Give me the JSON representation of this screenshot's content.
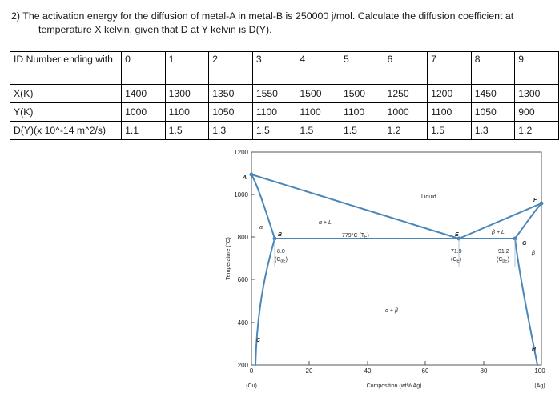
{
  "question": {
    "number": "2)",
    "line1": "The activation energy for the diffusion of metal-A in metal-B is 250000 j/mol. Calculate the diffusion coefficient at",
    "line2": "temperature X kelvin, given that D at Y kelvin is D(Y)."
  },
  "table": {
    "header_label": "ID Number ending with",
    "ids": [
      "0",
      "1",
      "2",
      "3",
      "4",
      "5",
      "6",
      "7",
      "8",
      "9"
    ],
    "rows": [
      {
        "label": "X(K)",
        "values": [
          "1400",
          "1300",
          "1350",
          "1550",
          "1500",
          "1500",
          "1250",
          "1200",
          "1450",
          "1300"
        ]
      },
      {
        "label": "Y(K)",
        "values": [
          "1000",
          "1100",
          "1050",
          "1100",
          "1100",
          "1100",
          "1000",
          "1100",
          "1050",
          "900"
        ]
      },
      {
        "label": "D(Y)(x 10^-14 m^2/s)",
        "values": [
          "1.1",
          "1.5",
          "1.3",
          "1.5",
          "1.5",
          "1.5",
          "1.2",
          "1.5",
          "1.3",
          "1.2"
        ]
      }
    ]
  },
  "diagram": {
    "y_axis_label": "Temperature (°C)",
    "y_ticks": [
      "1200",
      "1000",
      "800",
      "600",
      "400",
      "200"
    ],
    "x_ticks": [
      "0",
      "20",
      "40",
      "60",
      "80",
      "100"
    ],
    "x_axis_label": "Composition (wt% Ag)",
    "left_end": "(Cu)",
    "right_end": "(Ag)",
    "regions": {
      "liquid": "Liquid",
      "alpha": "α",
      "alpha_liquid": "α + L",
      "beta_liquid": "β + L",
      "alpha_beta": "α + β",
      "beta": "β"
    },
    "points": {
      "A": "A",
      "B": "B",
      "C": "C",
      "E": "E",
      "F": "F",
      "G": "G",
      "H": "H"
    },
    "eutectic_label": "779°C (T",
    "eutectic_sub": "E",
    "eutectic_close": ")",
    "comp_alpha": "8.0",
    "comp_alpha_sub": "(C",
    "comp_alpha_subsub": "αE",
    "comp_eut": "71.9",
    "comp_eut_sub": "(C",
    "comp_eut_subsub": "E",
    "comp_beta": "91.2",
    "comp_beta_sub": "(C",
    "comp_beta_subsub": "βE",
    "paren_close": ")"
  }
}
